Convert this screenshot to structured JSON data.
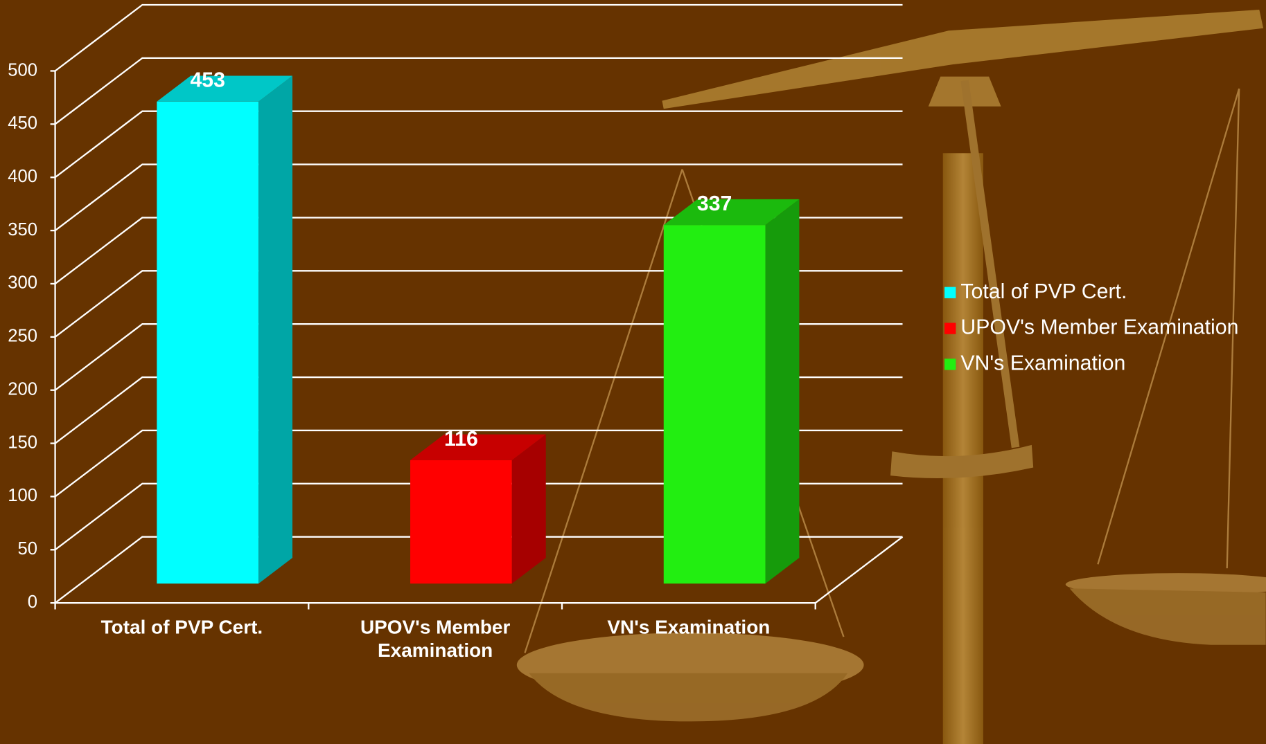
{
  "chart_data": {
    "type": "bar3d",
    "categories": [
      "Total of PVP Cert.",
      "UPOV's Member Examination",
      "VN's Examination"
    ],
    "values": [
      453,
      116,
      337
    ],
    "colors": [
      "#00ffff",
      "#ff0000",
      "#22ee11"
    ],
    "ylim": [
      0,
      500
    ],
    "yticks": [
      0,
      50,
      100,
      150,
      200,
      250,
      300,
      350,
      400,
      450,
      500
    ],
    "grid": true,
    "legend": "right"
  }
}
